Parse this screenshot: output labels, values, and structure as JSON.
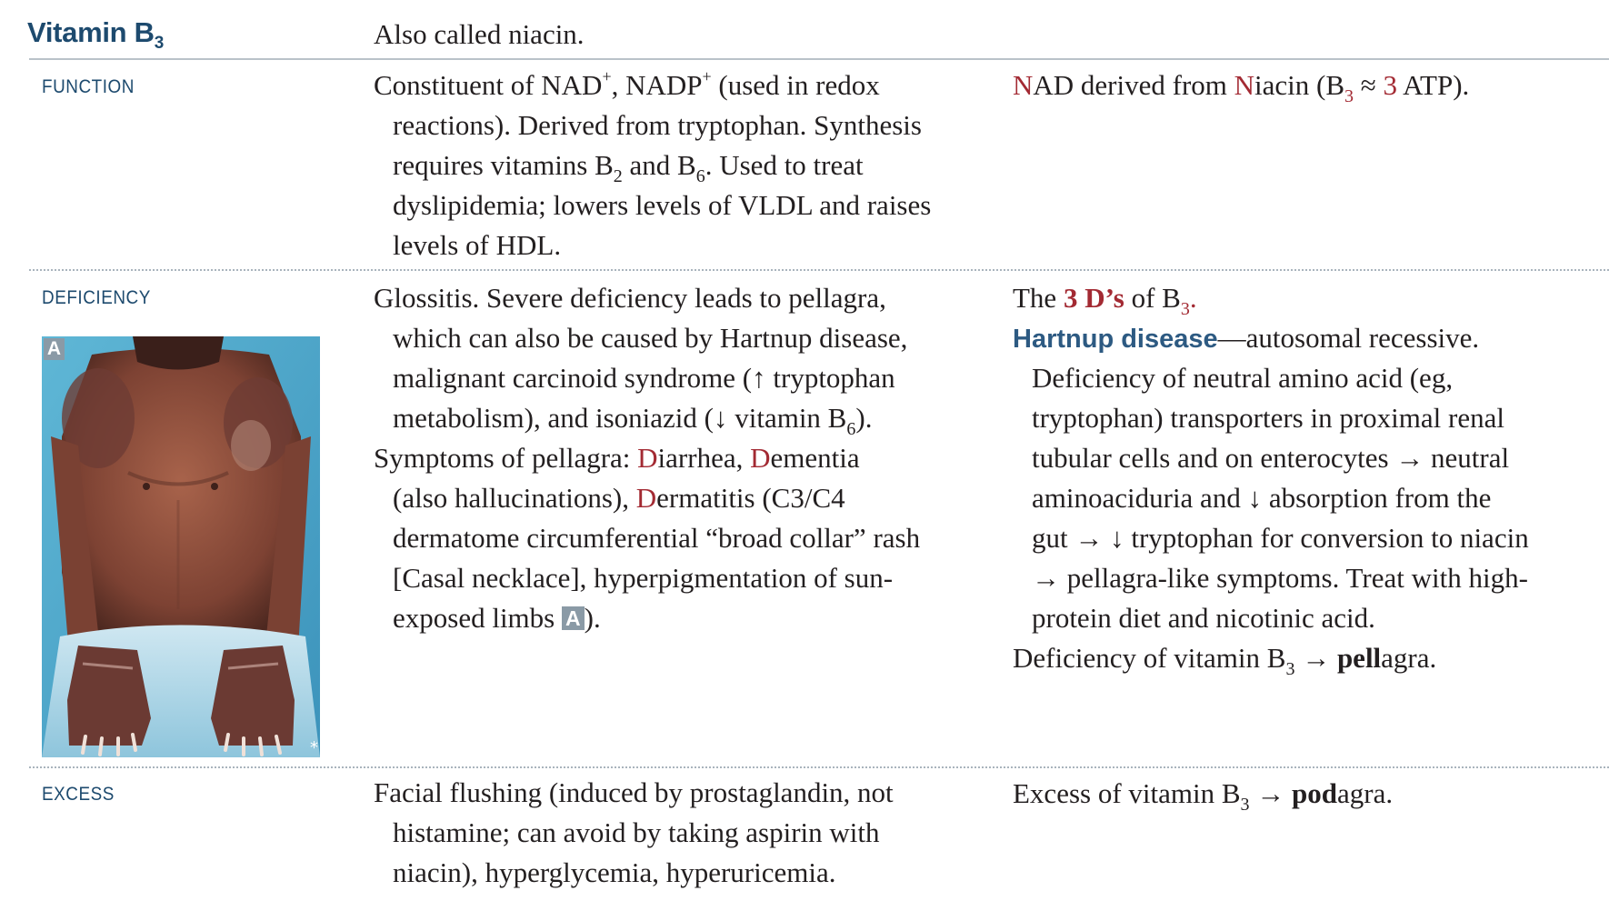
{
  "title": {
    "text": "Vitamin B",
    "sub": "3"
  },
  "intro": "Also called niacin.",
  "labels": {
    "function": "FUNCTION",
    "deficiency": "DEFICIENCY",
    "excess": "EXCESS"
  },
  "function": {
    "mid": {
      "l1a": "Constituent of NAD",
      "l1sup1": "+",
      "l1b": ", NADP",
      "l1sup2": "+",
      "l1c": " (used in redox",
      "l2": "reactions). Derived from tryptophan. Synthesis",
      "l3a": "requires vitamins B",
      "l3s1": "2",
      "l3b": " and B",
      "l3s2": "6",
      "l3c": ". Used to treat",
      "l4": "dyslipidemia; lowers levels of VLDL and raises",
      "l5": "levels of HDL."
    },
    "right": {
      "r1": "N",
      "r2": "AD derived from ",
      "r3": "N",
      "r4": "iacin (B",
      "r5": "3",
      "r6": " ≈ ",
      "r7": "3",
      "r8": " ATP)."
    }
  },
  "deficiency": {
    "mid": {
      "l1": "Glossitis. Severe deficiency leads to pellagra,",
      "l2": "which can also be caused by Hartnup disease,",
      "l3": "malignant carcinoid syndrome (↑ tryptophan",
      "l4a": "metabolism), and isoniazid (↓ vitamin B",
      "l4s": "6",
      "l4b": ").",
      "l5a": "Symptoms of pellagra: ",
      "l5d1": "D",
      "l5b": "iarrhea, ",
      "l5d2": "D",
      "l5c": "ementia",
      "l6a": "(also hallucinations), ",
      "l6d": "D",
      "l6b": "ermatitis (C3/C4",
      "l7": "dermatome circumferential “broad collar” rash",
      "l8": "[Casal necklace], hyperpigmentation of sun-",
      "l9a": "exposed limbs ",
      "l9badge": "A",
      "l9b": ")."
    },
    "right": {
      "l1a": "The ",
      "l1b": "3 D’s",
      "l1c": " of B",
      "l1s": "3",
      "l1d": ".",
      "l2a": "Hartnup disease",
      "l2b": "—autosomal recessive.",
      "l3": "Deficiency of neutral amino acid (eg,",
      "l4": "tryptophan) transporters in proximal renal",
      "l5": "tubular cells and on enterocytes → neutral",
      "l6": "aminoaciduria and ↓ absorption from the",
      "l7": "gut → ↓ tryptophan for conversion to niacin",
      "l8": "→ pellagra-like symptoms. Treat with high-",
      "l9": "protein diet and nicotinic acid.",
      "l10a": "Deficiency of vitamin B",
      "l10s": "3",
      "l10b": " → ",
      "l10c": "pell",
      "l10d": "agra."
    },
    "image": {
      "badge": "A",
      "corner": "*"
    }
  },
  "excess": {
    "mid": {
      "l1": "Facial flushing (induced by prostaglandin, not",
      "l2": "histamine; can avoid by taking aspirin with",
      "l3": "niacin), hyperglycemia, hyperuricemia."
    },
    "right": {
      "a": "Excess of vitamin B",
      "s": "3",
      "b": " → ",
      "c": "pod",
      "d": "agra."
    }
  }
}
